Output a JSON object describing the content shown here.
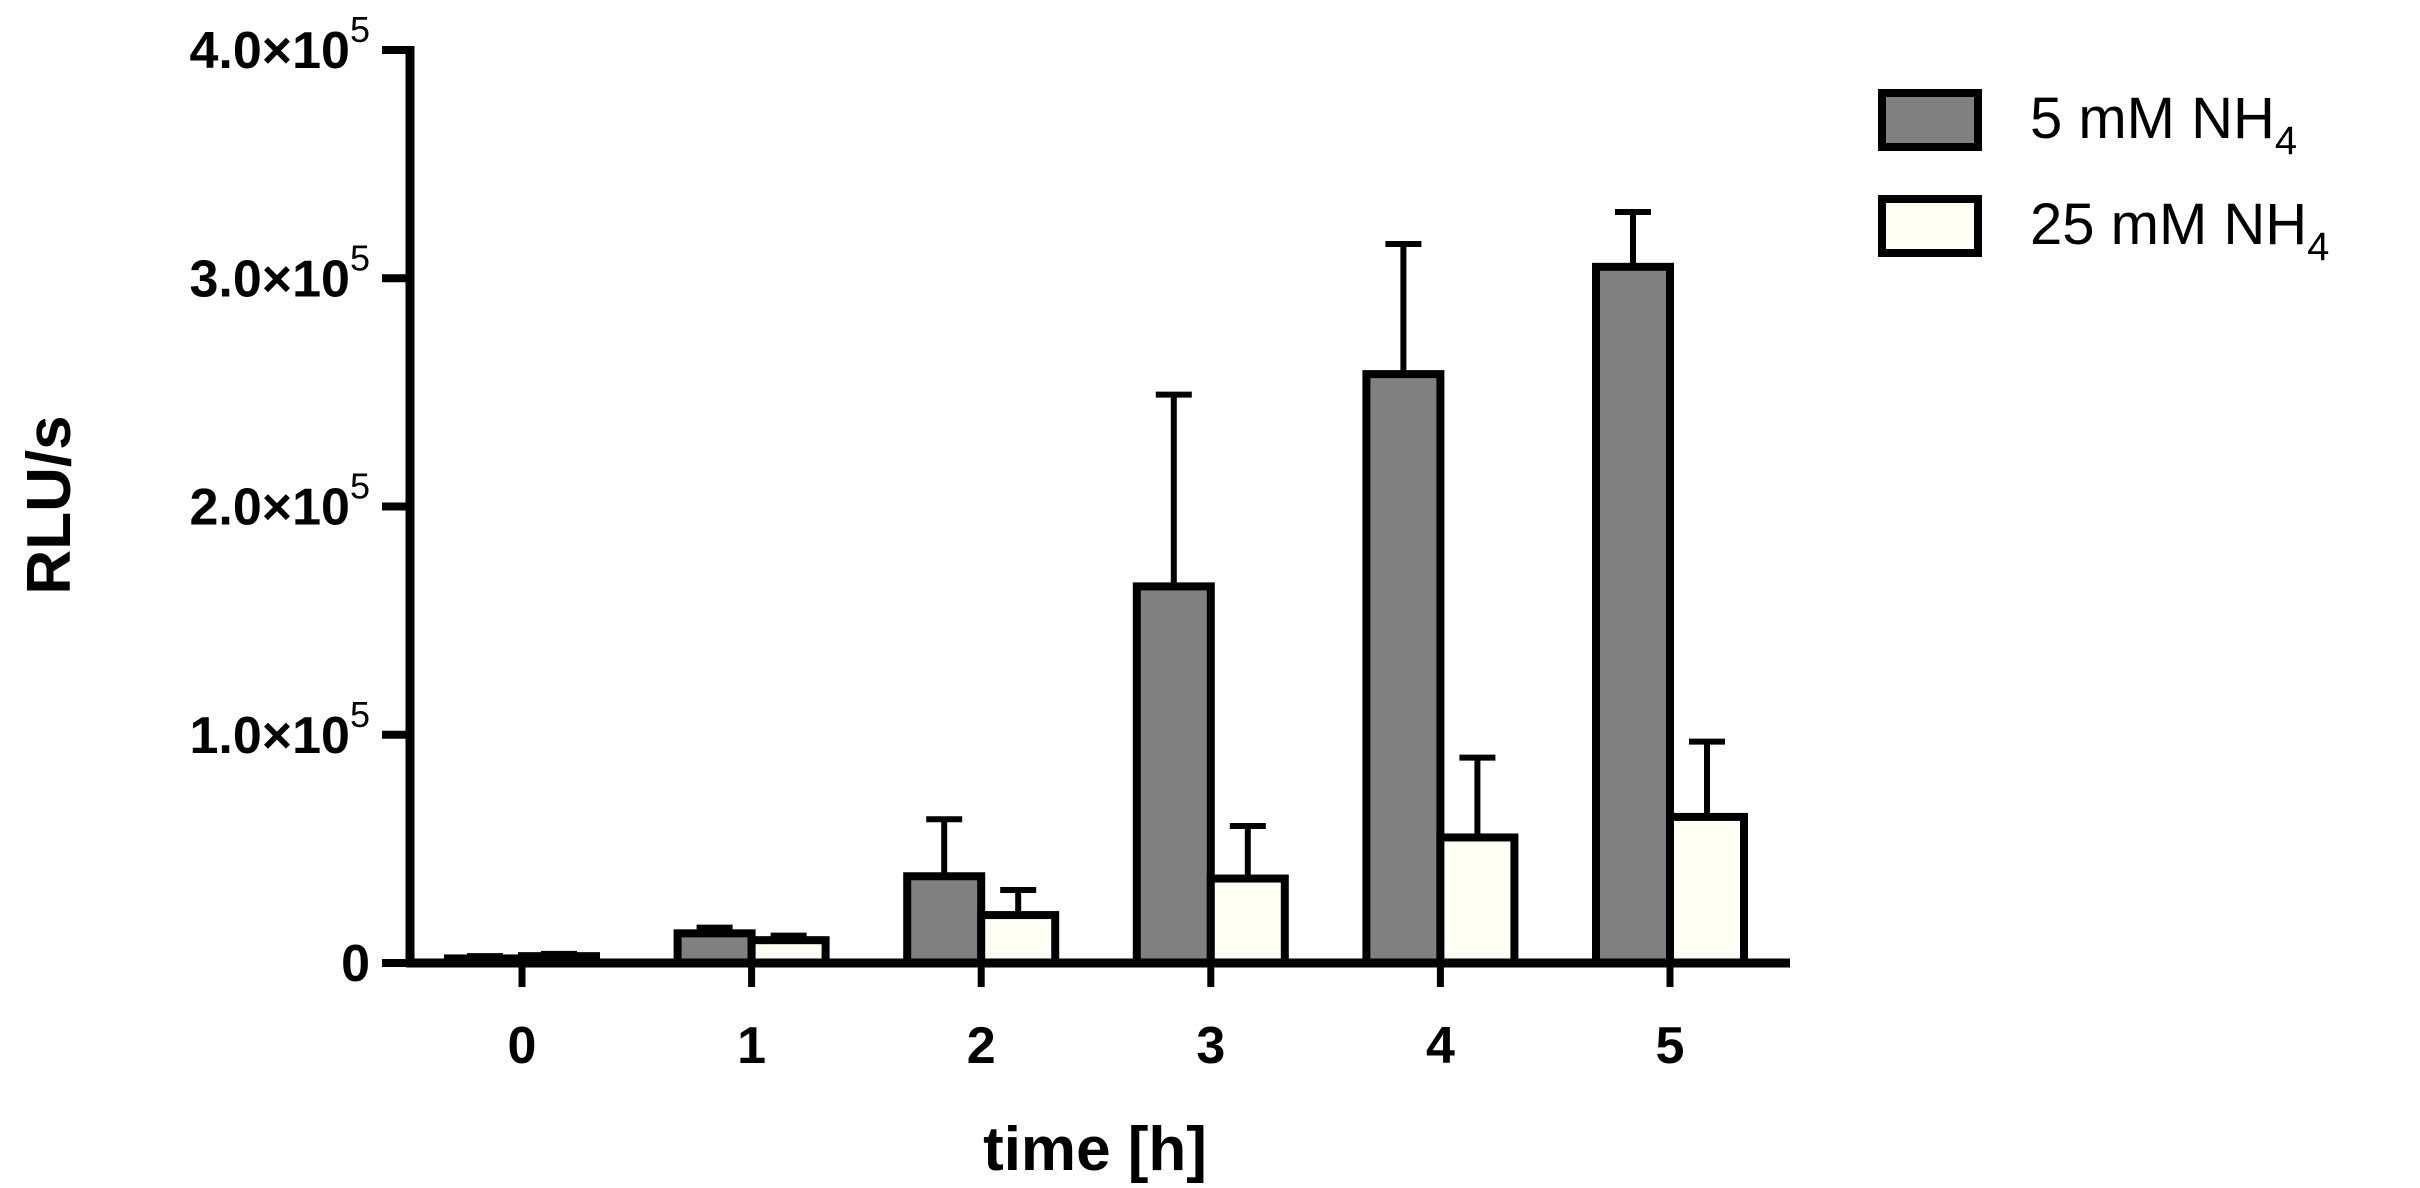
{
  "chart_data": {
    "type": "bar",
    "title": "",
    "xlabel": "time [h]",
    "ylabel": "RLU/s",
    "categories": [
      "0",
      "1",
      "2",
      "3",
      "4",
      "5"
    ],
    "ylim": [
      0,
      400000
    ],
    "yticks": [
      {
        "value": 0,
        "mantissa": "0",
        "exponent": ""
      },
      {
        "value": 100000,
        "mantissa": "1.0×10",
        "exponent": "5"
      },
      {
        "value": 200000,
        "mantissa": "2.0×10",
        "exponent": "5"
      },
      {
        "value": 300000,
        "mantissa": "3.0×10",
        "exponent": "5"
      },
      {
        "value": 400000,
        "mantissa": "4.0×10",
        "exponent": "5"
      }
    ],
    "grid": false,
    "legend_position": "top-right",
    "series": [
      {
        "name": "5 mM NH",
        "name_subscript": "4",
        "color": "#808080",
        "values": [
          2000,
          13000,
          38000,
          165000,
          258000,
          305000
        ],
        "errors": [
          1000,
          2500,
          25000,
          84000,
          57000,
          24000
        ]
      },
      {
        "name": "25 mM NH",
        "name_subscript": "4",
        "color": "#fffff5",
        "values": [
          3000,
          10000,
          21000,
          37000,
          55000,
          64000
        ],
        "errors": [
          1000,
          2000,
          11000,
          23000,
          35000,
          33000
        ]
      }
    ]
  }
}
